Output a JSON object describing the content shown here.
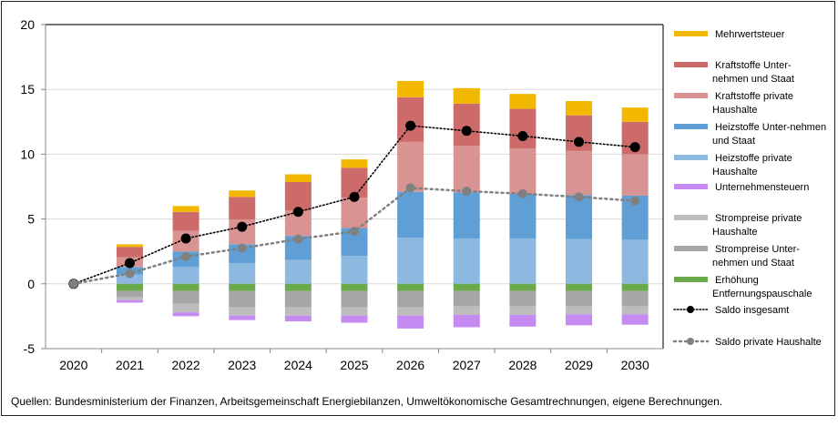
{
  "chart_data": {
    "type": "bar",
    "stacked": true,
    "title": "",
    "xlabel": "",
    "ylabel": "",
    "ylim": [
      -5,
      20
    ],
    "yticks": [
      -5,
      0,
      5,
      10,
      15,
      20
    ],
    "grid": true,
    "legend_position": "right",
    "categories": [
      "2020",
      "2021",
      "2022",
      "2023",
      "2024",
      "2025",
      "2026",
      "2027",
      "2028",
      "2029",
      "2030"
    ],
    "positive_series": [
      {
        "key": "heiz_priv",
        "name": "Heizstoffe private Haushalte",
        "color": "#8DB8E0",
        "values": [
          0,
          0.7,
          1.3,
          1.6,
          1.85,
          2.15,
          3.55,
          3.5,
          3.5,
          3.45,
          3.4
        ]
      },
      {
        "key": "heiz_unt",
        "name": "Heizstoffe Unter-nehmen und Staat",
        "color": "#5F9FD6",
        "values": [
          0,
          0.6,
          1.2,
          1.45,
          1.85,
          2.15,
          3.55,
          3.55,
          3.45,
          3.4,
          3.4
        ]
      },
      {
        "key": "kraft_priv",
        "name": "Kraftstoffe private Haushalte",
        "color": "#D99393",
        "values": [
          0,
          0.75,
          1.6,
          1.9,
          1.95,
          2.35,
          3.85,
          3.6,
          3.5,
          3.4,
          3.2
        ]
      },
      {
        "key": "kraft_unt",
        "name": "Kraftstoffe Unter-nehmen und Staat",
        "color": "#CD6B6B",
        "values": [
          0,
          0.8,
          1.45,
          1.75,
          2.2,
          2.3,
          3.45,
          3.25,
          3.05,
          2.75,
          2.5
        ]
      },
      {
        "key": "mwst",
        "name": "Mehrwertsteuer",
        "color": "#F2B800",
        "values": [
          0,
          0.2,
          0.45,
          0.5,
          0.6,
          0.65,
          1.25,
          1.2,
          1.15,
          1.1,
          1.1
        ]
      }
    ],
    "negative_series": [
      {
        "key": "entf",
        "name": "Erhöhung Entfernungspauschale",
        "color": "#6AAA4A",
        "values": [
          0,
          -0.55,
          -0.55,
          -0.55,
          -0.55,
          -0.55,
          -0.55,
          -0.55,
          -0.55,
          -0.55,
          -0.55
        ]
      },
      {
        "key": "strom_unt",
        "name": "Strompreise Unter-nehmen und Staat",
        "color": "#A6A6A6",
        "values": [
          0,
          -0.5,
          -1.0,
          -1.25,
          -1.25,
          -1.25,
          -1.25,
          -1.2,
          -1.2,
          -1.2,
          -1.2
        ]
      },
      {
        "key": "strom_priv",
        "name": "Strompreise private Haushalte",
        "color": "#BDBDBD",
        "values": [
          0,
          -0.2,
          -0.65,
          -0.65,
          -0.65,
          -0.65,
          -0.65,
          -0.65,
          -0.65,
          -0.6,
          -0.6
        ]
      },
      {
        "key": "untst",
        "name": "Unternehmensteuern",
        "color": "#C58BF2",
        "values": [
          0,
          -0.2,
          -0.3,
          -0.35,
          -0.45,
          -0.55,
          -1.0,
          -0.95,
          -0.9,
          -0.85,
          -0.8
        ]
      }
    ],
    "lines": [
      {
        "key": "saldo",
        "name": "Saldo insgesamt",
        "color": "#000000",
        "values": [
          0,
          1.6,
          3.5,
          4.4,
          5.55,
          6.7,
          12.2,
          11.8,
          11.4,
          10.95,
          10.55
        ]
      },
      {
        "key": "saldo_priv",
        "name": "Saldo private Haushalte",
        "color": "#808080",
        "values": [
          0,
          0.8,
          2.1,
          2.75,
          3.45,
          4.05,
          7.4,
          7.15,
          6.95,
          6.7,
          6.4
        ]
      }
    ],
    "legend_order": [
      "mwst",
      "kraft_unt",
      "kraft_priv",
      "heiz_unt",
      "heiz_priv",
      "untst",
      "strom_priv",
      "strom_unt",
      "entf",
      "saldo",
      "saldo_priv"
    ],
    "legend_labels": {
      "mwst": [
        "Mehrwertsteuer"
      ],
      "kraft_unt": [
        "Kraftstoffe Unter-",
        "nehmen und Staat"
      ],
      "kraft_priv": [
        "Kraftstoffe private",
        "Haushalte"
      ],
      "heiz_unt": [
        "Heizstoffe Unter-nehmen",
        "und Staat"
      ],
      "heiz_priv": [
        "Heizstoffe private",
        "Haushalte"
      ],
      "untst": [
        "Unternehmensteuern"
      ],
      "strom_priv": [
        "Strompreise private",
        "Haushalte"
      ],
      "strom_unt": [
        "Strompreise Unter-",
        "nehmen und Staat"
      ],
      "entf": [
        "Erhöhung",
        "Entfernungspauschale"
      ],
      "saldo": [
        "Saldo insgesamt"
      ],
      "saldo_priv": [
        "Saldo private Haushalte"
      ]
    }
  },
  "source_note": "Quellen: Bundesministerium der Finanzen, Arbeitsgemeinschaft Energiebilanzen, Umweltökonomische Gesamtrechnungen, eigene Berechnungen."
}
